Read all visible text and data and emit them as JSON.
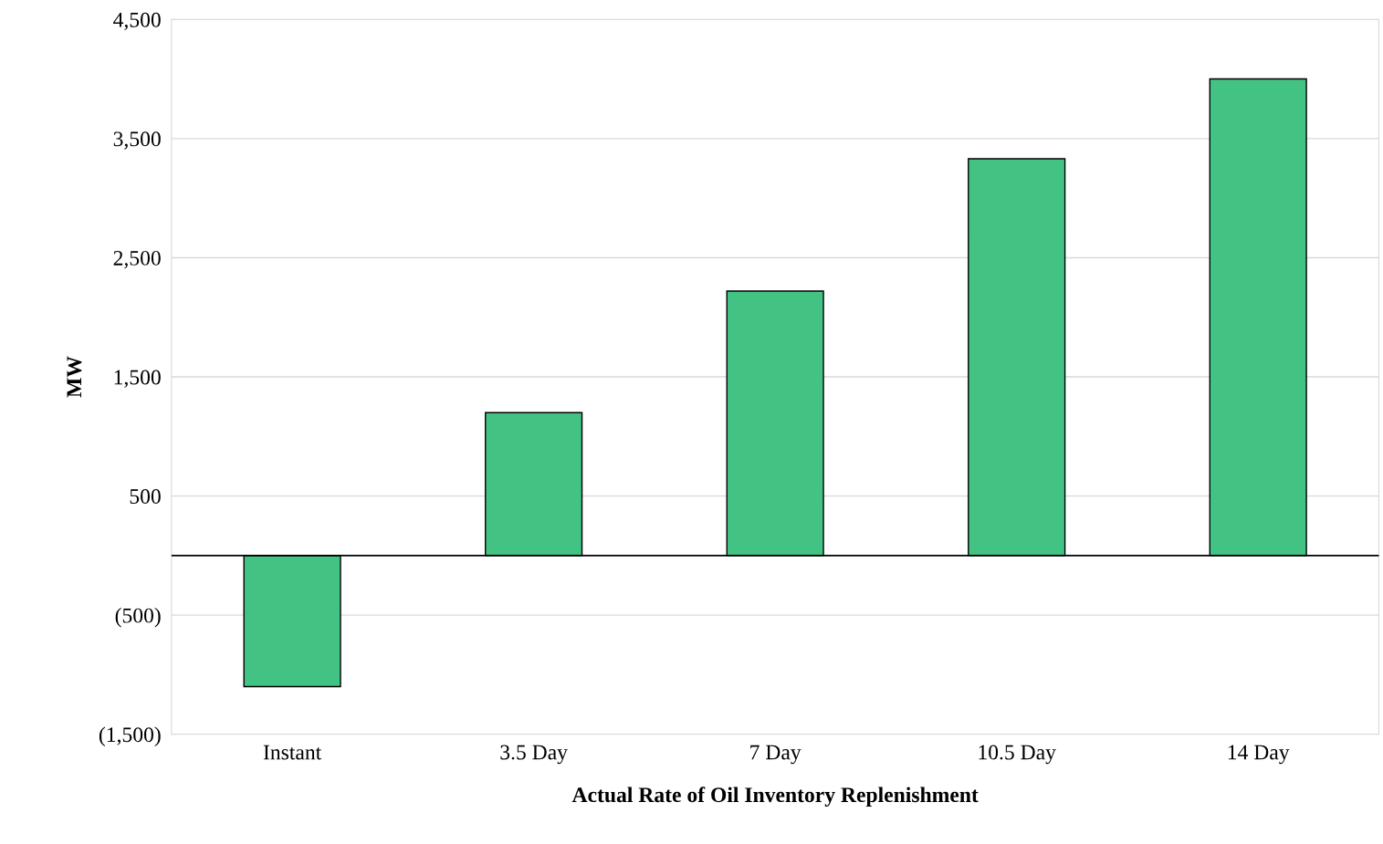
{
  "chart_data": {
    "type": "bar",
    "xlabel": "Actual Rate of Oil Inventory Replenishment",
    "ylabel": "MW",
    "categories": [
      "Instant",
      "3.5 Day",
      "7 Day",
      "10.5 Day",
      "14 Day"
    ],
    "values": [
      -1100,
      1200,
      2220,
      3330,
      4000
    ],
    "color": "#43c383",
    "ylim": [
      -1500,
      4500
    ],
    "yticks": [
      {
        "value": -1500,
        "label": "(1,500)"
      },
      {
        "value": -500,
        "label": "(500)"
      },
      {
        "value": 500,
        "label": "500"
      },
      {
        "value": 1500,
        "label": "1,500"
      },
      {
        "value": 2500,
        "label": "2,500"
      },
      {
        "value": 3500,
        "label": "3,500"
      },
      {
        "value": 4500,
        "label": "4,500"
      }
    ],
    "ref_lines": [
      {
        "axis": "y",
        "value": 0,
        "color": "#000000"
      }
    ],
    "grid": "y",
    "legend": false
  }
}
